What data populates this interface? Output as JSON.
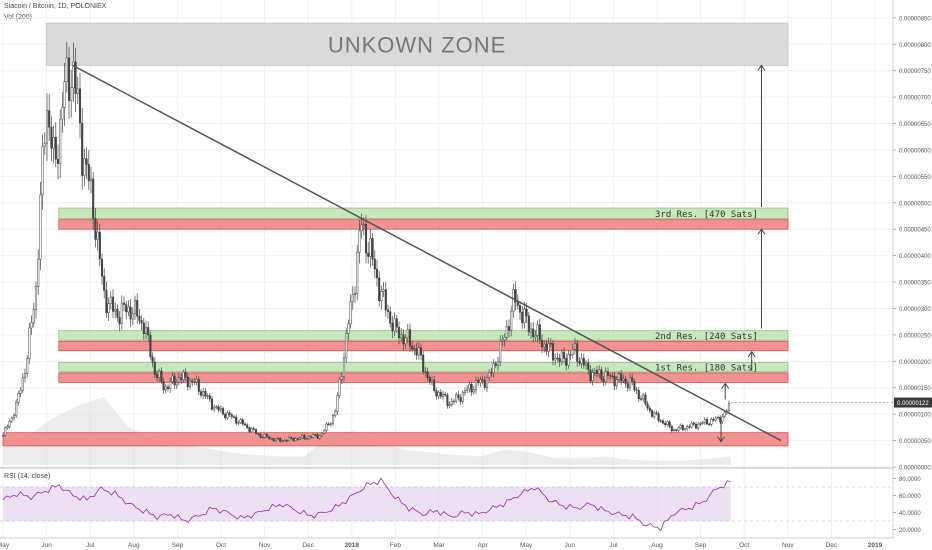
{
  "header": {
    "title": "Siacoin / Bitcoin, 1D, POLONIEX",
    "volume_label": "Vol (200)"
  },
  "colors": {
    "candle": "#444444",
    "trendline": "#555555",
    "support_fill": "#f08080",
    "support_stroke": "#d32f2f",
    "resistance_fill": "#bfe3b4",
    "resistance_stroke": "#7cb36b",
    "unknown_zone_fill": "#d6d6d6",
    "rsi_line": "#9c27b0",
    "rsi_band": "#e8d8f0",
    "volume": "#dcdcdc",
    "last_price_box": "#3a3a3a"
  },
  "chart_data": {
    "type": "candlestick",
    "title": "Siacoin / Bitcoin, 1D, POLONIEX",
    "x_ticks": [
      "May",
      "Jun",
      "Jul",
      "Aug",
      "Sep",
      "Oct",
      "Nov",
      "Dec",
      "2018",
      "Feb",
      "Mar",
      "Apr",
      "May",
      "Jun",
      "Jul",
      "Aug",
      "Sep",
      "Oct",
      "Nov",
      "Dec",
      "2019"
    ],
    "y_ticks": [
      "0.00000850",
      "0.00000800",
      "0.00000750",
      "0.00000700",
      "0.00000650",
      "0.00000600",
      "0.00000550",
      "0.00000500",
      "0.00000450",
      "0.00000400",
      "0.00000350",
      "0.00000300",
      "0.00000250",
      "0.00000200",
      "0.00000150",
      "0.00000100",
      "0.00000050",
      "0.00000000"
    ],
    "ylim": [
      0,
      8.8e-06
    ],
    "price_path": [
      [
        "2017-05-01",
        6e-07
      ],
      [
        "2017-05-10",
        1.1e-06
      ],
      [
        "2017-05-18",
        2e-06
      ],
      [
        "2017-05-25",
        3.5e-06
      ],
      [
        "2017-06-01",
        7e-06
      ],
      [
        "2017-06-07",
        5.6e-06
      ],
      [
        "2017-06-13",
        7e-06
      ],
      [
        "2017-06-20",
        7.6e-06
      ],
      [
        "2017-06-27",
        6e-06
      ],
      [
        "2017-07-05",
        4.9e-06
      ],
      [
        "2017-07-12",
        3.3e-06
      ],
      [
        "2017-07-20",
        2.9e-06
      ],
      [
        "2017-08-01",
        3e-06
      ],
      [
        "2017-08-10",
        2.7e-06
      ],
      [
        "2017-08-18",
        1.8e-06
      ],
      [
        "2017-08-25",
        1.5e-06
      ],
      [
        "2017-09-05",
        1.7e-06
      ],
      [
        "2017-09-15",
        1.6e-06
      ],
      [
        "2017-10-01",
        1.1e-06
      ],
      [
        "2017-10-15",
        9e-07
      ],
      [
        "2017-11-01",
        6e-07
      ],
      [
        "2017-11-15",
        5e-07
      ],
      [
        "2017-12-01",
        5.5e-07
      ],
      [
        "2017-12-15",
        6e-07
      ],
      [
        "2017-12-25",
        1e-06
      ],
      [
        "2018-01-01",
        2.2e-06
      ],
      [
        "2018-01-08",
        3.5e-06
      ],
      [
        "2018-01-13",
        4.6e-06
      ],
      [
        "2018-01-20",
        4e-06
      ],
      [
        "2018-01-28",
        3.2e-06
      ],
      [
        "2018-02-06",
        2.6e-06
      ],
      [
        "2018-02-15",
        2.4e-06
      ],
      [
        "2018-02-22",
        2.2e-06
      ],
      [
        "2018-03-05",
        1.5e-06
      ],
      [
        "2018-03-18",
        1.2e-06
      ],
      [
        "2018-04-01",
        1.5e-06
      ],
      [
        "2018-04-15",
        1.7e-06
      ],
      [
        "2018-04-25",
        2.4e-06
      ],
      [
        "2018-05-03",
        3.2e-06
      ],
      [
        "2018-05-12",
        2.7e-06
      ],
      [
        "2018-05-25",
        2.3e-06
      ],
      [
        "2018-06-05",
        2e-06
      ],
      [
        "2018-06-15",
        2.2e-06
      ],
      [
        "2018-06-25",
        1.8e-06
      ],
      [
        "2018-07-10",
        1.7e-06
      ],
      [
        "2018-07-25",
        1.6e-06
      ],
      [
        "2018-08-10",
        1e-06
      ],
      [
        "2018-08-25",
        7e-07
      ],
      [
        "2018-09-10",
        8e-07
      ],
      [
        "2018-09-25",
        9e-07
      ],
      [
        "2018-10-01",
        1e-06
      ],
      [
        "2018-10-05",
        1.22e-06
      ]
    ],
    "volume_path": [
      0.2,
      0.35,
      0.55,
      0.7,
      0.8,
      0.45,
      0.3,
      0.25,
      0.2,
      0.15,
      0.12,
      0.1,
      0.1,
      0.35,
      0.4,
      0.25,
      0.18,
      0.15,
      0.12,
      0.1,
      0.18,
      0.15,
      0.08,
      0.08,
      0.1,
      0.06,
      0.05,
      0.05,
      0.07,
      0.1
    ],
    "last_price": "0.00000122",
    "trendline": {
      "from": [
        "2017-06-20",
        7.6e-06
      ],
      "to": [
        "2018-11-10",
        5e-07
      ]
    },
    "zones": [
      {
        "kind": "unknown",
        "label": "UNKOWN ZONE",
        "y_low": 7.6e-06,
        "y_high": 8.4e-06,
        "x_from": "2017-06-01",
        "x_to": "2018-11-15"
      },
      {
        "kind": "resistance",
        "label": "3rd Res. [470 Sats]",
        "y_low": 4.7e-06,
        "y_high": 4.9e-06,
        "x_from": "2017-06-10",
        "x_to": "2018-11-15"
      },
      {
        "kind": "support",
        "label": "",
        "y_low": 4.5e-06,
        "y_high": 4.68e-06,
        "x_from": "2017-06-10",
        "x_to": "2018-11-15"
      },
      {
        "kind": "resistance",
        "label": "2nd Res. [240 Sats]",
        "y_low": 2.4e-06,
        "y_high": 2.58e-06,
        "x_from": "2017-06-10",
        "x_to": "2018-11-15"
      },
      {
        "kind": "support",
        "label": "",
        "y_low": 2.2e-06,
        "y_high": 2.38e-06,
        "x_from": "2017-06-10",
        "x_to": "2018-11-15"
      },
      {
        "kind": "resistance",
        "label": "1st Res. [180 Sats]",
        "y_low": 1.8e-06,
        "y_high": 1.98e-06,
        "x_from": "2017-06-10",
        "x_to": "2018-11-15"
      },
      {
        "kind": "support",
        "label": "",
        "y_low": 1.6e-06,
        "y_high": 1.78e-06,
        "x_from": "2017-06-10",
        "x_to": "2018-11-15"
      },
      {
        "kind": "support",
        "label": "",
        "y_low": 4e-07,
        "y_high": 6.5e-07,
        "x_from": "2017-05-01",
        "x_to": "2018-11-15"
      }
    ],
    "arrows": [
      {
        "x": "2018-10-01",
        "from": 1.28e-06,
        "to": 1.58e-06
      },
      {
        "x": "2018-10-20",
        "from": 1.82e-06,
        "to": 2.18e-06
      },
      {
        "x": "2018-10-27",
        "from": 2.62e-06,
        "to": 4.5e-06
      },
      {
        "x": "2018-10-27",
        "from": 4.92e-06,
        "to": 7.6e-06
      },
      {
        "x": "2018-09-28",
        "from": 9e-07,
        "to": 4.8e-07
      }
    ]
  },
  "rsi": {
    "label": "RSI (14, close)",
    "y_ticks": [
      "80.0000",
      "60.0000",
      "40.0000",
      "20.0000"
    ],
    "ylim": [
      10,
      90
    ],
    "upper_band": 70,
    "lower_band": 30,
    "path": [
      55,
      62,
      58,
      65,
      72,
      60,
      55,
      68,
      62,
      50,
      42,
      35,
      38,
      30,
      36,
      45,
      40,
      33,
      38,
      45,
      50,
      42,
      36,
      40,
      48,
      60,
      72,
      78,
      58,
      45,
      38,
      42,
      35,
      40,
      38,
      45,
      52,
      62,
      70,
      55,
      48,
      45,
      50,
      42,
      38,
      35,
      25,
      22,
      40,
      45,
      52,
      68,
      76
    ]
  }
}
